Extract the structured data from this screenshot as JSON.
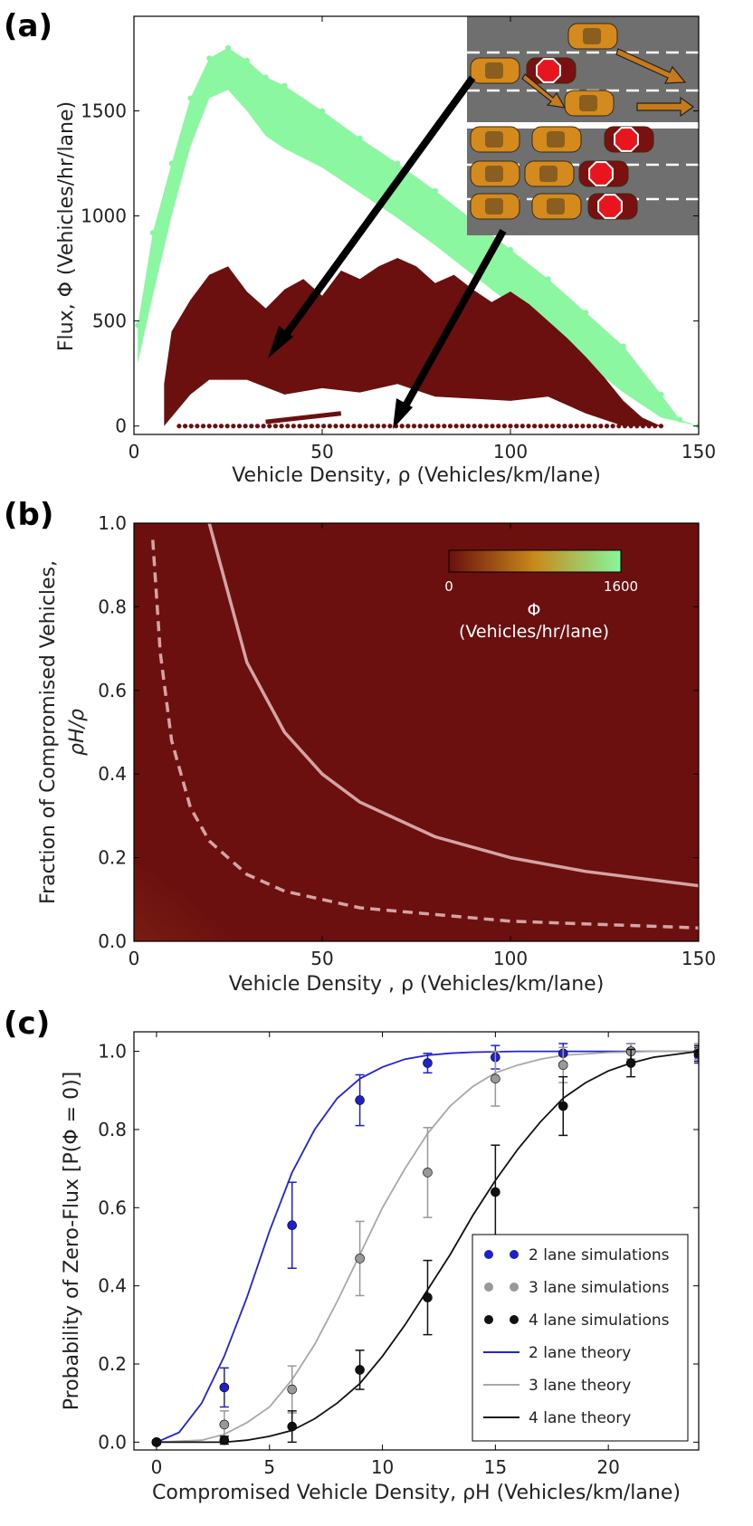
{
  "panels": {
    "a": "(a)",
    "b": "(b)",
    "c": "(c)"
  },
  "chart_data": [
    {
      "id": "a",
      "type": "scatter",
      "title": "",
      "xlabel": "Vehicle Density, ρ (Vehicles/km/lane)",
      "ylabel": "Flux, Φ (Vehicles/hr/lane)",
      "xlim": [
        0,
        150
      ],
      "ylim": [
        -40,
        1950
      ],
      "xticks": [
        "0",
        "50",
        "100",
        "150"
      ],
      "yticks": [
        "0",
        "500",
        "1000",
        "1500"
      ],
      "grid": false,
      "colors": {
        "normal": "#86f79c",
        "compromised": "#6b0f0f"
      },
      "series": [
        {
          "role": "normal traffic",
          "color": "#86f79c",
          "upper_envelope": [
            [
              1,
              480
            ],
            [
              5,
              920
            ],
            [
              10,
              1250
            ],
            [
              15,
              1560
            ],
            [
              20,
              1750
            ],
            [
              25,
              1800
            ],
            [
              30,
              1740
            ],
            [
              35,
              1660
            ],
            [
              40,
              1620
            ],
            [
              50,
              1500
            ],
            [
              60,
              1370
            ],
            [
              70,
              1250
            ],
            [
              80,
              1120
            ],
            [
              90,
              980
            ],
            [
              100,
              840
            ],
            [
              110,
              700
            ],
            [
              120,
              540
            ],
            [
              130,
              380
            ],
            [
              140,
              150
            ],
            [
              145,
              30
            ],
            [
              150,
              0
            ]
          ],
          "lower_envelope": [
            [
              1,
              300
            ],
            [
              5,
              620
            ],
            [
              10,
              1000
            ],
            [
              15,
              1330
            ],
            [
              20,
              1560
            ],
            [
              25,
              1600
            ],
            [
              30,
              1500
            ],
            [
              35,
              1380
            ],
            [
              40,
              1320
            ],
            [
              50,
              1230
            ],
            [
              60,
              1110
            ],
            [
              70,
              990
            ],
            [
              80,
              860
            ],
            [
              90,
              720
            ],
            [
              100,
              580
            ],
            [
              110,
              440
            ],
            [
              120,
              300
            ],
            [
              130,
              160
            ],
            [
              140,
              40
            ],
            [
              150,
              0
            ]
          ]
        },
        {
          "role": "compromised traffic",
          "color": "#6b0f0f",
          "upper_envelope": [
            [
              8,
              200
            ],
            [
              10,
              450
            ],
            [
              15,
              600
            ],
            [
              20,
              720
            ],
            [
              25,
              760
            ],
            [
              30,
              640
            ],
            [
              35,
              560
            ],
            [
              40,
              650
            ],
            [
              45,
              700
            ],
            [
              50,
              620
            ],
            [
              55,
              740
            ],
            [
              60,
              700
            ],
            [
              65,
              760
            ],
            [
              70,
              800
            ],
            [
              75,
              760
            ],
            [
              80,
              680
            ],
            [
              85,
              720
            ],
            [
              90,
              650
            ],
            [
              95,
              590
            ],
            [
              100,
              640
            ],
            [
              105,
              580
            ],
            [
              110,
              500
            ],
            [
              115,
              420
            ],
            [
              120,
              330
            ],
            [
              125,
              230
            ],
            [
              130,
              120
            ],
            [
              135,
              40
            ],
            [
              140,
              0
            ]
          ],
          "lower_envelope": [
            [
              8,
              0
            ],
            [
              15,
              150
            ],
            [
              20,
              220
            ],
            [
              30,
              220
            ],
            [
              40,
              150
            ],
            [
              50,
              180
            ],
            [
              60,
              160
            ],
            [
              70,
              200
            ],
            [
              80,
              140
            ],
            [
              90,
              130
            ],
            [
              100,
              120
            ],
            [
              110,
              140
            ],
            [
              120,
              60
            ],
            [
              130,
              0
            ],
            [
              140,
              0
            ]
          ],
          "zero_flux_row": [
            [
              12,
              0
            ],
            [
              140,
              0
            ]
          ],
          "diagonal_streak": [
            [
              35,
              20
            ],
            [
              55,
              60
            ]
          ]
        }
      ],
      "inset": "cartoon of multi-lane road with normal (orange) and compromised (stopped, red stop sign) vehicles"
    },
    {
      "id": "b",
      "type": "heatmap",
      "title": "",
      "xlabel": "Vehicle Density , ρ (Vehicles/km/lane)",
      "ylabel": "Fraction of Compromised Vehicles,",
      "ylabel2": "ρH/ρ",
      "xlim": [
        0,
        150
      ],
      "ylim": [
        0,
        1
      ],
      "xticks": [
        "0",
        "50",
        "100",
        "150"
      ],
      "yticks": [
        "0.0",
        "0.2",
        "0.4",
        "0.6",
        "0.8",
        "1.0"
      ],
      "colorbar": {
        "label": "Φ",
        "label2": "(Vehicles/hr/lane)",
        "min_label": "0",
        "max_label": "1600",
        "range": [
          0,
          1600
        ],
        "colors": [
          "#6b0f0f",
          "#c98a1a",
          "#86f79c"
        ]
      },
      "curves": [
        {
          "style": "solid",
          "color": "#d4a3a3",
          "points": [
            [
              20,
              1.0
            ],
            [
              30,
              0.667
            ],
            [
              40,
              0.5
            ],
            [
              50,
              0.4
            ],
            [
              60,
              0.333
            ],
            [
              80,
              0.25
            ],
            [
              100,
              0.2
            ],
            [
              120,
              0.167
            ],
            [
              150,
              0.133
            ]
          ]
        },
        {
          "style": "dashed",
          "color": "#d4a3a3",
          "points": [
            [
              5,
              0.96
            ],
            [
              7,
              0.69
            ],
            [
              10,
              0.48
            ],
            [
              15,
              0.32
            ],
            [
              20,
              0.24
            ],
            [
              30,
              0.16
            ],
            [
              40,
              0.12
            ],
            [
              60,
              0.08
            ],
            [
              100,
              0.048
            ],
            [
              150,
              0.032
            ]
          ]
        }
      ]
    },
    {
      "id": "c",
      "type": "line",
      "title": "",
      "xlabel": "Compromised Vehicle Density, ρH (Vehicles/km/lane)",
      "ylabel": "Probability of Zero-Flux [P(Φ = 0)]",
      "xlim": [
        -1,
        24
      ],
      "ylim": [
        -0.02,
        1.05
      ],
      "xticks": [
        "0",
        "5",
        "10",
        "15",
        "20"
      ],
      "yticks": [
        "0.0",
        "0.2",
        "0.4",
        "0.6",
        "0.8",
        "1.0"
      ],
      "legend": {
        "placement": "lower-right",
        "entries": [
          "2 lane simulations",
          "3 lane simulations",
          "4 lane simulations",
          "2 lane theory",
          "3 lane theory",
          "4 lane theory"
        ]
      },
      "series": [
        {
          "name": "2 lane simulations",
          "kind": "points",
          "color": "#1f1fcc",
          "x": [
            0,
            3,
            6,
            9,
            12,
            15,
            18,
            21,
            24
          ],
          "y": [
            0.0,
            0.14,
            0.555,
            0.875,
            0.97,
            0.985,
            0.995,
            1.0,
            0.99
          ],
          "err": [
            0.005,
            0.05,
            0.11,
            0.065,
            0.025,
            0.03,
            0.025,
            0.02,
            0.02
          ]
        },
        {
          "name": "3 lane simulations",
          "kind": "points",
          "color": "#999999",
          "x": [
            0,
            3,
            6,
            9,
            12,
            15,
            18,
            21,
            24
          ],
          "y": [
            0.0,
            0.045,
            0.135,
            0.47,
            0.69,
            0.93,
            0.965,
            1.0,
            1.0
          ],
          "err": [
            0.005,
            0.035,
            0.06,
            0.095,
            0.115,
            0.07,
            0.045,
            0.02,
            0.02
          ]
        },
        {
          "name": "4 lane simulations",
          "kind": "points",
          "color": "#111111",
          "x": [
            0,
            3,
            6,
            9,
            12,
            15,
            18,
            21,
            24
          ],
          "y": [
            0.0,
            0.005,
            0.04,
            0.185,
            0.37,
            0.64,
            0.86,
            0.97,
            0.995
          ],
          "err": [
            0.005,
            0.01,
            0.04,
            0.05,
            0.095,
            0.12,
            0.075,
            0.035,
            0.02
          ]
        },
        {
          "name": "2 lane theory",
          "kind": "line",
          "color": "#2222dd",
          "x": [
            0,
            1,
            2,
            3,
            4,
            5,
            6,
            7,
            8,
            9,
            10,
            11,
            12,
            13,
            14,
            16,
            18,
            20,
            22,
            24
          ],
          "y": [
            0.0,
            0.025,
            0.1,
            0.22,
            0.37,
            0.54,
            0.69,
            0.8,
            0.88,
            0.93,
            0.96,
            0.98,
            0.99,
            0.995,
            0.998,
            1.0,
            1.0,
            1.0,
            1.0,
            1.0
          ]
        },
        {
          "name": "3 lane theory",
          "kind": "line",
          "color": "#a8a8a8",
          "x": [
            0,
            2,
            3,
            4,
            5,
            6,
            7,
            8,
            9,
            10,
            11,
            12,
            13,
            14,
            15,
            16,
            17,
            18,
            20,
            22,
            24
          ],
          "y": [
            0.0,
            0.005,
            0.02,
            0.05,
            0.09,
            0.16,
            0.25,
            0.36,
            0.48,
            0.6,
            0.7,
            0.79,
            0.86,
            0.91,
            0.945,
            0.965,
            0.98,
            0.99,
            0.997,
            1.0,
            1.0
          ]
        },
        {
          "name": "4 lane theory",
          "kind": "line",
          "color": "#111111",
          "x": [
            0,
            3,
            4,
            5,
            6,
            7,
            8,
            9,
            10,
            11,
            12,
            13,
            14,
            15,
            16,
            17,
            18,
            19,
            20,
            21,
            22,
            24
          ],
          "y": [
            0.0,
            0.0,
            0.005,
            0.015,
            0.03,
            0.06,
            0.1,
            0.15,
            0.22,
            0.3,
            0.39,
            0.48,
            0.58,
            0.67,
            0.75,
            0.82,
            0.88,
            0.92,
            0.95,
            0.97,
            0.985,
            1.0
          ]
        }
      ]
    }
  ]
}
